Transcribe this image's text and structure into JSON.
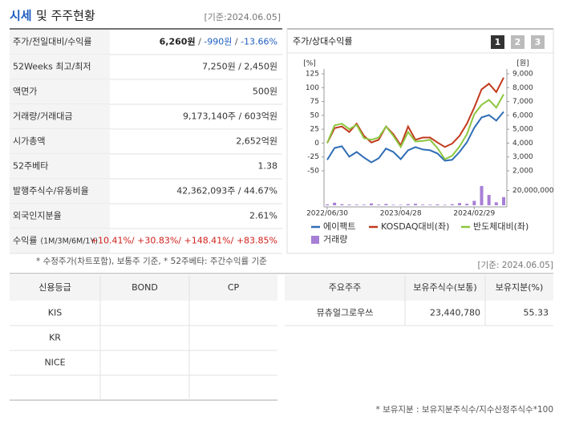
{
  "header": {
    "title_main": "시세",
    "title_rest": "및 주주현황",
    "date": "[기준:2024.06.05]"
  },
  "quote_table": {
    "rows": [
      {
        "label": "주가/전일대비/수익률",
        "parts": [
          {
            "text": "6,260원",
            "color": "#222222",
            "bold": true
          },
          {
            "text": " / ",
            "color": "#555555"
          },
          {
            "text": "-990원",
            "color": "#1f5fbf"
          },
          {
            "text": " / ",
            "color": "#555555"
          },
          {
            "text": "-13.66%",
            "color": "#1f5fbf"
          }
        ]
      },
      {
        "label": "52Weeks 최고/최저",
        "parts": [
          {
            "text": "7,250원 / 2,450원",
            "color": "#333333"
          }
        ]
      },
      {
        "label": "액면가",
        "parts": [
          {
            "text": "500원",
            "color": "#333333"
          }
        ]
      },
      {
        "label": "거래량/거래대금",
        "parts": [
          {
            "text": "9,173,140주 / 603억원",
            "color": "#333333"
          }
        ]
      },
      {
        "label": "시가총액",
        "parts": [
          {
            "text": "2,652억원",
            "color": "#333333"
          }
        ]
      },
      {
        "label": "52주베타",
        "parts": [
          {
            "text": "1.38",
            "color": "#333333"
          }
        ]
      },
      {
        "label": "발행주식수/유동비율",
        "parts": [
          {
            "text": "42,362,093주 / 44.67%",
            "color": "#333333"
          }
        ]
      },
      {
        "label": "외국인지분율",
        "parts": [
          {
            "text": "2.61%",
            "color": "#333333"
          }
        ]
      },
      {
        "label": "수익률",
        "label_note": "(1M/3M/6M/1Y)",
        "parts": [
          {
            "text": "+10.41%/ +30.83%/ +148.41%/ +83.85%",
            "color": "#d0201b"
          }
        ]
      }
    ]
  },
  "chart_data": {
    "type": "line",
    "title": "주가/상대수익률",
    "buttons": [
      "1",
      "2",
      "3"
    ],
    "active_button": 0,
    "ylabel": "[%]",
    "y2label": "[원]",
    "categories": [
      "2022/06/30",
      null,
      null,
      null,
      null,
      null,
      null,
      null,
      null,
      null,
      "2023/04/28",
      null,
      null,
      null,
      null,
      null,
      null,
      null,
      null,
      null,
      "2024/02/29",
      null,
      null,
      null,
      null
    ],
    "ylim": [
      -50,
      125
    ],
    "yticks": [
      125,
      100,
      75,
      50,
      25,
      0,
      -25,
      -50
    ],
    "y2lim": [
      2000,
      9000
    ],
    "y2ticks": [
      {
        "value": 9000,
        "label": "9,000"
      },
      {
        "value": 8000,
        "label": "8,000"
      },
      {
        "value": 7000,
        "label": "7,000"
      },
      {
        "value": 6000,
        "label": "6,000"
      },
      {
        "value": 5000,
        "label": "5,000"
      },
      {
        "value": 4000,
        "label": "4,000"
      },
      {
        "value": 3000,
        "label": "3,000"
      },
      {
        "value": 2000,
        "label": "2,000"
      }
    ],
    "y3lim": [
      0,
      40000000
    ],
    "y3ticks": [
      {
        "value": 20000000,
        "label": "20,000,000"
      }
    ],
    "series": [
      {
        "name": "에이팩트",
        "color": "#2f6db5",
        "axis": "y2",
        "values": [
          2790,
          3650,
          3770,
          3020,
          3360,
          2960,
          2610,
          2900,
          3600,
          3360,
          2840,
          3480,
          3710,
          3540,
          3480,
          3250,
          2730,
          2790,
          3360,
          4060,
          5100,
          5850,
          6020,
          5620,
          6260
        ]
      },
      {
        "name": "KOSDAQ대비(좌)",
        "color": "#c23a1e",
        "axis": "y",
        "values": [
          0,
          27,
          30,
          20,
          35,
          13,
          1,
          6,
          30,
          16,
          -4,
          30,
          6,
          10,
          10,
          1,
          -7,
          -1,
          13,
          35,
          64,
          97,
          107,
          92,
          118
        ]
      },
      {
        "name": "반도체대비(좌)",
        "color": "#8cc63f",
        "axis": "y",
        "values": [
          0,
          32,
          35,
          25,
          33,
          9,
          6,
          10,
          30,
          13,
          -7,
          20,
          3,
          4,
          6,
          -9,
          -29,
          -23,
          -6,
          16,
          52,
          69,
          78,
          64,
          88
        ]
      },
      {
        "name": "거래량",
        "color": "#a77fd6",
        "axis": "y3",
        "type": "bar",
        "values": [
          1200000,
          3500000,
          1500000,
          1000000,
          900000,
          800000,
          2500000,
          1000000,
          1800000,
          700000,
          600000,
          1500000,
          2000000,
          900000,
          800000,
          1200000,
          700000,
          1500000,
          3000000,
          2000000,
          6000000,
          26000000,
          14000000,
          4000000,
          11000000
        ]
      }
    ]
  },
  "notes": {
    "left": "* 수정주가(차트포함), 보통주 기준, * 52주베타: 주간수익률 기준",
    "date": "[기준: 2024.06.05]",
    "footer": "* 보유지분 : 보유지분주식수/지수산정주식수*100"
  },
  "credit_table": {
    "headers": [
      "신용등급",
      "BOND",
      "CP"
    ],
    "agencies": [
      "KIS",
      "KR",
      "NICE"
    ]
  },
  "holder_table": {
    "headers": [
      "주요주주",
      "보유주식수(보통)",
      "보유지분(%)"
    ],
    "rows": [
      [
        "뮤츄얼그로우쓰",
        "23,440,780",
        "55.33"
      ]
    ]
  }
}
